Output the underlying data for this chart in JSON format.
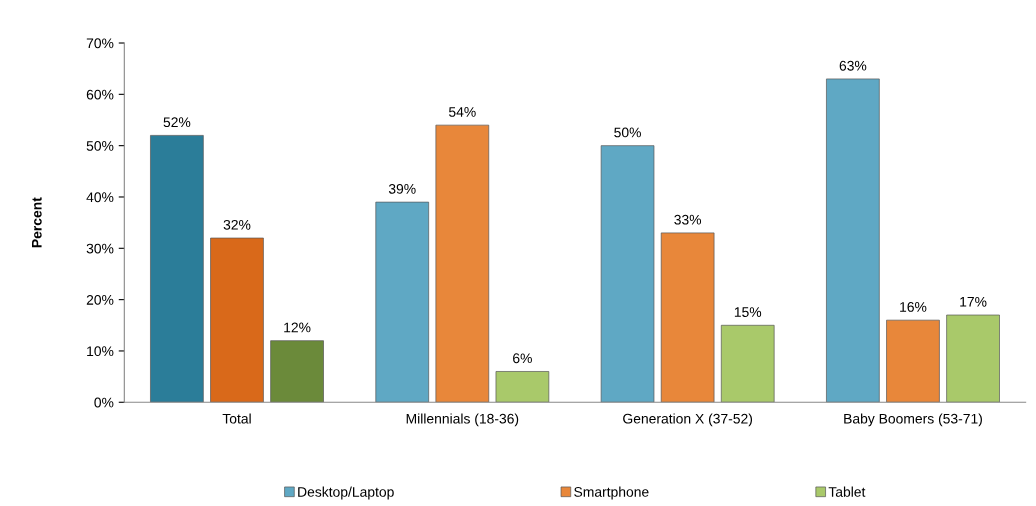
{
  "chart_data": {
    "type": "bar",
    "ylabel": "Percent",
    "categories": [
      "Total",
      "Millennials (18-36)",
      "Generation X (37-52)",
      "Baby Boomers (53-71)"
    ],
    "series": [
      {
        "name": "Desktop/Laptop",
        "color": "#5fa8c4",
        "colors": [
          "#2b7d99",
          "#5fa8c4",
          "#5fa8c4",
          "#5fa8c4"
        ],
        "values": [
          52,
          39,
          50,
          63
        ],
        "value_labels": [
          "52%",
          "39%",
          "50%",
          "63%"
        ]
      },
      {
        "name": "Smartphone",
        "color": "#e8873a",
        "colors": [
          "#d9691a",
          "#e8873a",
          "#e8873a",
          "#e8873a"
        ],
        "values": [
          32,
          54,
          33,
          16
        ],
        "value_labels": [
          "32%",
          "54%",
          "33%",
          "16%"
        ]
      },
      {
        "name": "Tablet",
        "color": "#a9c96a",
        "colors": [
          "#6b8a3a",
          "#a9c96a",
          "#a9c96a",
          "#a9c96a"
        ],
        "values": [
          12,
          6,
          15,
          17
        ],
        "value_labels": [
          "12%",
          "6%",
          "15%",
          "17%"
        ]
      }
    ],
    "ylim": [
      0,
      70
    ],
    "yticks": [
      {
        "value": 0,
        "label": "0%"
      },
      {
        "value": 10,
        "label": "10%"
      },
      {
        "value": 20,
        "label": "20%"
      },
      {
        "value": 30,
        "label": "30%"
      },
      {
        "value": 40,
        "label": "40%"
      },
      {
        "value": 50,
        "label": "50%"
      },
      {
        "value": 60,
        "label": "60%"
      },
      {
        "value": 70,
        "label": "70%"
      }
    ],
    "grid": false,
    "legend": "bottom"
  }
}
